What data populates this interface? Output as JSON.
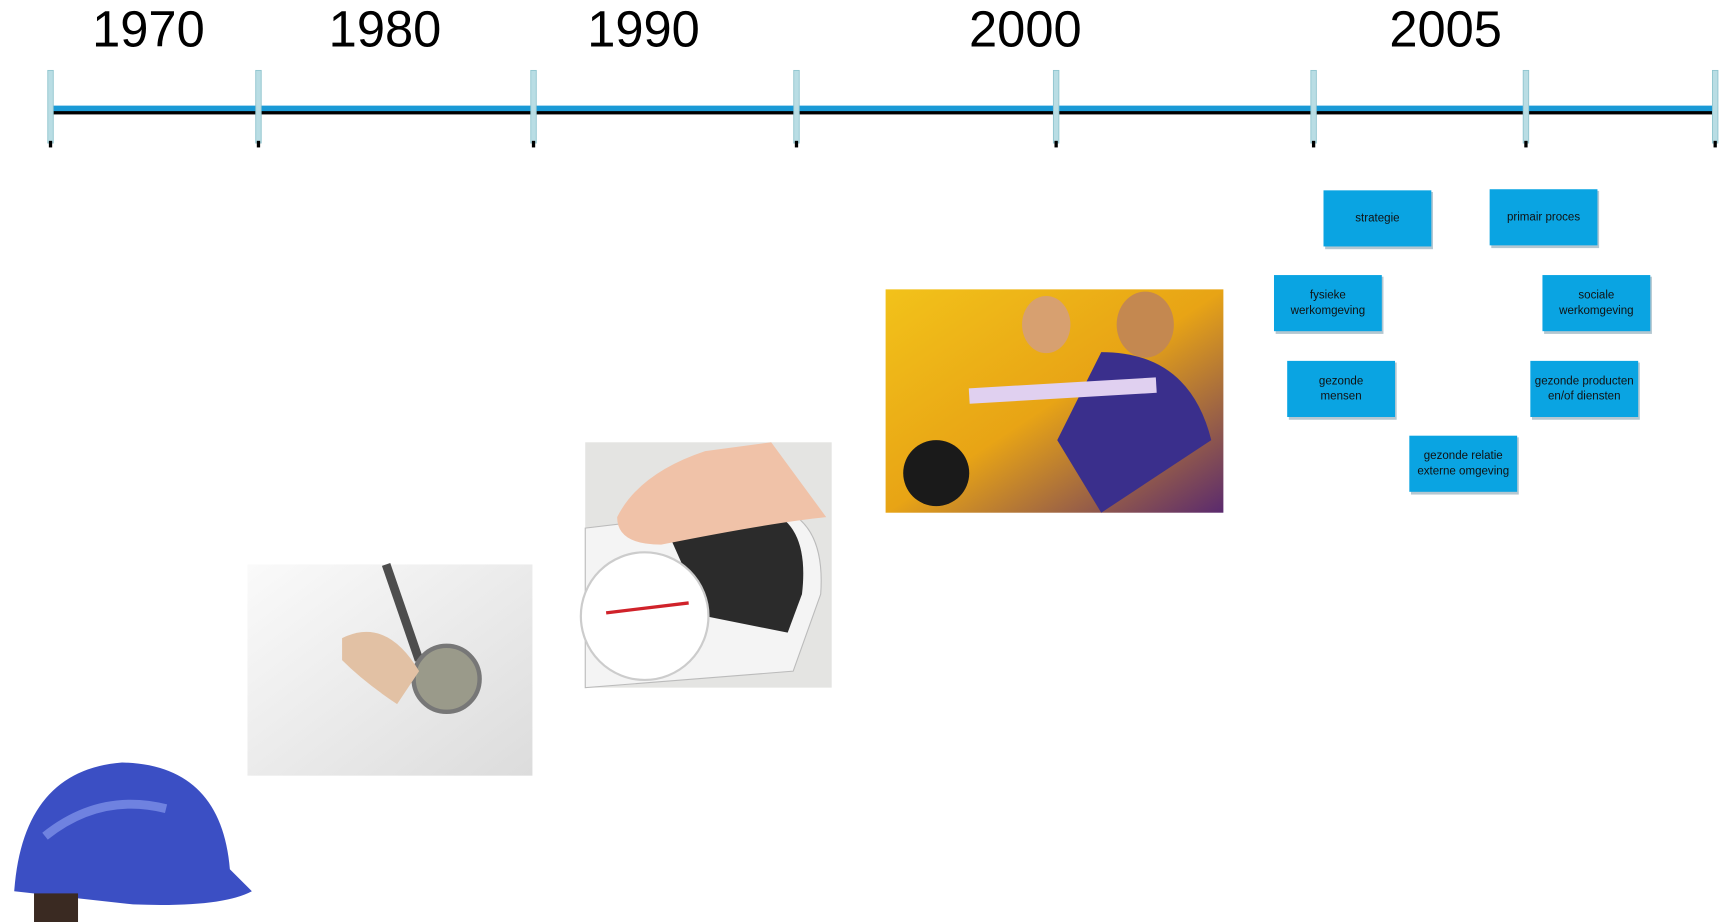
{
  "timeline": {
    "years": [
      "1970",
      "1980",
      "1990",
      "2000",
      "2005"
    ]
  },
  "boxes": [
    {
      "lines": [
        "strategie"
      ]
    },
    {
      "lines": [
        "primair proces"
      ]
    },
    {
      "lines": [
        "fysieke",
        "werkomgeving"
      ]
    },
    {
      "lines": [
        "sociale",
        "werkomgeving"
      ]
    },
    {
      "lines": [
        "gezonde",
        "mensen"
      ]
    },
    {
      "lines": [
        "gezonde producten",
        "en/of diensten"
      ]
    },
    {
      "lines": [
        "gezonde relatie",
        "externe omgeving"
      ]
    }
  ]
}
